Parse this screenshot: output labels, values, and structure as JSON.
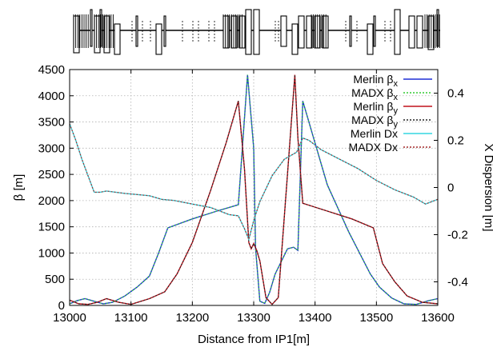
{
  "chart_data": {
    "type": "line",
    "xlabel": "Distance from IP1[m]",
    "ylabel": "β [m]",
    "y2label": "X Dispersion [m]",
    "xlim": [
      13000,
      13600
    ],
    "ylim": [
      0,
      4500
    ],
    "y2lim": [
      -0.5,
      0.5
    ],
    "grid": true,
    "legend_position": "top-right",
    "x_ticks": [
      "13000",
      "13100",
      "13200",
      "13300",
      "13400",
      "13500",
      "13600"
    ],
    "y_ticks": [
      "0",
      "500",
      "1000",
      "1500",
      "2000",
      "2500",
      "3000",
      "3500",
      "4000",
      "4500"
    ],
    "y2_ticks": [
      "-0.4",
      "-0.2",
      "0",
      "0.2",
      "0.4"
    ],
    "legend": [
      {
        "name": "Merlin",
        "symbol": "β",
        "sub": "x",
        "color": "#1f2fd6",
        "dash": false
      },
      {
        "name": "MADX",
        "symbol": "β",
        "sub": "x",
        "color": "#33cc33",
        "dash": true
      },
      {
        "name": "Merlin",
        "symbol": "β",
        "sub": "y",
        "color": "#c0121c",
        "dash": false
      },
      {
        "name": "MADX",
        "symbol": "β",
        "sub": "y",
        "color": "#222222",
        "dash": true
      },
      {
        "name": "Merlin Dx",
        "symbol": "",
        "sub": "",
        "color": "#33d6e0",
        "dash": false
      },
      {
        "name": "MADX Dx",
        "symbol": "",
        "sub": "",
        "color": "#a52a2a",
        "dash": true
      }
    ],
    "series": [
      {
        "name": "Merlin βx",
        "axis": "left",
        "color": "#1f2fd6",
        "dash": false,
        "x": [
          13000,
          13012,
          13025,
          13040,
          13055,
          13070,
          13090,
          13110,
          13130,
          13145,
          13160,
          13200,
          13240,
          13275,
          13290,
          13300,
          13303,
          13310,
          13318,
          13326,
          13335,
          13355,
          13365,
          13372,
          13380,
          13395,
          13420,
          13455,
          13490,
          13505,
          13525,
          13545,
          13565,
          13585,
          13600
        ],
        "y": [
          30,
          90,
          130,
          80,
          30,
          60,
          180,
          350,
          560,
          1000,
          1480,
          1650,
          1800,
          1920,
          4400,
          3000,
          1100,
          80,
          40,
          250,
          600,
          1080,
          1110,
          1050,
          3900,
          3300,
          2300,
          1400,
          600,
          350,
          140,
          30,
          20,
          90,
          130
        ]
      },
      {
        "name": "MADX βx",
        "axis": "left",
        "color": "#33cc33",
        "dash": true,
        "x": [
          13000,
          13012,
          13025,
          13040,
          13055,
          13070,
          13090,
          13110,
          13130,
          13145,
          13160,
          13200,
          13240,
          13275,
          13290,
          13300,
          13303,
          13310,
          13318,
          13326,
          13335,
          13355,
          13365,
          13372,
          13380,
          13395,
          13420,
          13455,
          13490,
          13505,
          13525,
          13545,
          13565,
          13585,
          13600
        ],
        "y": [
          30,
          90,
          130,
          80,
          30,
          60,
          180,
          350,
          560,
          1000,
          1480,
          1650,
          1800,
          1920,
          4400,
          3000,
          1100,
          80,
          40,
          250,
          600,
          1080,
          1110,
          1050,
          3900,
          3300,
          2300,
          1400,
          600,
          350,
          140,
          30,
          20,
          90,
          130
        ]
      },
      {
        "name": "Merlin βy",
        "axis": "left",
        "color": "#c0121c",
        "dash": false,
        "x": [
          13000,
          13015,
          13030,
          13045,
          13060,
          13080,
          13100,
          13130,
          13155,
          13175,
          13200,
          13230,
          13255,
          13275,
          13285,
          13292,
          13296,
          13300,
          13305,
          13310,
          13320,
          13330,
          13340,
          13355,
          13367,
          13372,
          13380,
          13420,
          13460,
          13495,
          13510,
          13530,
          13550,
          13575,
          13600
        ],
        "y": [
          100,
          30,
          20,
          60,
          130,
          60,
          20,
          130,
          260,
          600,
          1200,
          2200,
          3100,
          3900,
          2600,
          1200,
          1080,
          1180,
          1050,
          850,
          150,
          20,
          150,
          2500,
          4400,
          3200,
          1950,
          1800,
          1650,
          1480,
          800,
          450,
          180,
          60,
          30
        ]
      },
      {
        "name": "MADX βy",
        "axis": "left",
        "color": "#222222",
        "dash": true,
        "x": [
          13000,
          13015,
          13030,
          13045,
          13060,
          13080,
          13100,
          13130,
          13155,
          13175,
          13200,
          13230,
          13255,
          13275,
          13285,
          13292,
          13296,
          13300,
          13305,
          13310,
          13320,
          13330,
          13340,
          13355,
          13367,
          13372,
          13380,
          13420,
          13460,
          13495,
          13510,
          13530,
          13550,
          13575,
          13600
        ],
        "y": [
          100,
          30,
          20,
          60,
          130,
          60,
          20,
          130,
          260,
          600,
          1200,
          2200,
          3100,
          3900,
          2600,
          1200,
          1080,
          1180,
          1050,
          850,
          150,
          20,
          150,
          2500,
          4400,
          3200,
          1950,
          1800,
          1650,
          1480,
          800,
          450,
          180,
          60,
          30
        ]
      },
      {
        "name": "Merlin Dx",
        "axis": "right",
        "color": "#33d6e0",
        "dash": false,
        "x": [
          13000,
          13010,
          13020,
          13030,
          13040,
          13050,
          13060,
          13090,
          13110,
          13130,
          13150,
          13170,
          13200,
          13230,
          13260,
          13275,
          13285,
          13292,
          13300,
          13310,
          13330,
          13350,
          13370,
          13380,
          13390,
          13410,
          13440,
          13470,
          13500,
          13530,
          13560,
          13580,
          13600
        ],
        "y": [
          0.27,
          0.2,
          0.12,
          0.05,
          -0.02,
          -0.02,
          -0.015,
          -0.025,
          -0.03,
          -0.035,
          -0.05,
          -0.055,
          -0.07,
          -0.085,
          -0.115,
          -0.12,
          -0.175,
          -0.22,
          -0.14,
          -0.06,
          0.05,
          0.12,
          0.15,
          0.21,
          0.2,
          0.16,
          0.12,
          0.08,
          0.03,
          -0.01,
          -0.04,
          -0.07,
          -0.05
        ]
      },
      {
        "name": "MADX Dx",
        "axis": "right",
        "color": "#a52a2a",
        "dash": true,
        "x": [
          13000,
          13010,
          13020,
          13030,
          13040,
          13050,
          13060,
          13090,
          13110,
          13130,
          13150,
          13170,
          13200,
          13230,
          13260,
          13275,
          13285,
          13292,
          13300,
          13310,
          13330,
          13350,
          13370,
          13380,
          13390,
          13410,
          13440,
          13470,
          13500,
          13530,
          13560,
          13580,
          13600
        ],
        "y": [
          0.27,
          0.2,
          0.12,
          0.05,
          -0.02,
          -0.02,
          -0.015,
          -0.025,
          -0.03,
          -0.035,
          -0.05,
          -0.055,
          -0.07,
          -0.085,
          -0.115,
          -0.12,
          -0.175,
          -0.22,
          -0.14,
          -0.06,
          0.05,
          0.12,
          0.15,
          0.21,
          0.2,
          0.16,
          0.12,
          0.08,
          0.03,
          -0.01,
          -0.04,
          -0.07,
          -0.05
        ]
      }
    ]
  }
}
